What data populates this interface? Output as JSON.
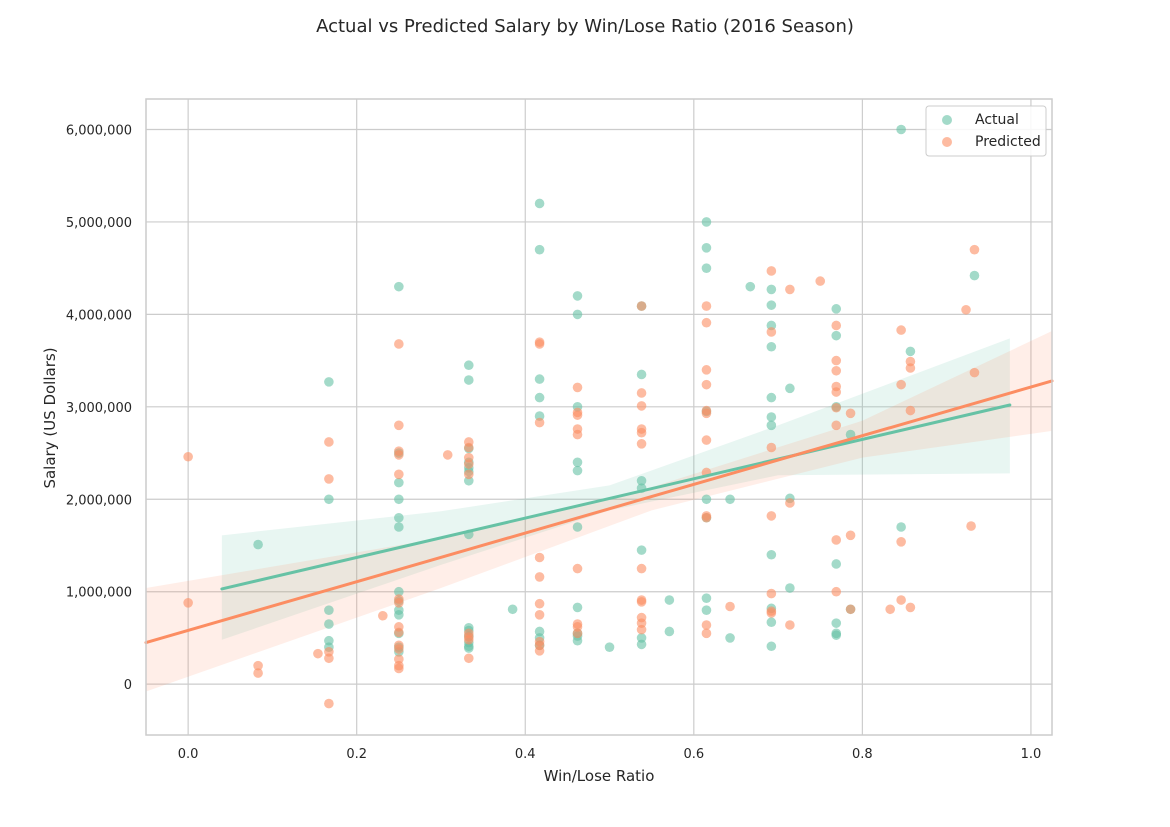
{
  "chart_data": {
    "type": "scatter",
    "title": "Actual vs Predicted Salary by Win/Lose Ratio (2016 Season)",
    "xlabel": "Win/Lose Ratio",
    "ylabel": "Salary (US Dollars)",
    "xlim": [
      -0.05,
      1.025
    ],
    "ylim": [
      -550000,
      6330000
    ],
    "xticks": [
      0.0,
      0.2,
      0.4,
      0.6,
      0.8,
      1.0
    ],
    "xtick_labels": [
      "0.0",
      "0.2",
      "0.4",
      "0.6",
      "0.8",
      "1.0"
    ],
    "yticks": [
      0,
      1000000,
      2000000,
      3000000,
      4000000,
      5000000,
      6000000
    ],
    "ytick_labels": [
      "0",
      "1,000,000",
      "2,000,000",
      "3,000,000",
      "4,000,000",
      "5,000,000",
      "6,000,000"
    ],
    "grid": true,
    "legend_position": "top-right",
    "series": [
      {
        "name": "Actual",
        "color": "#66c2a5",
        "points": [
          [
            0.083,
            1510000
          ],
          [
            0.167,
            3270000
          ],
          [
            0.167,
            2000000
          ],
          [
            0.167,
            800000
          ],
          [
            0.167,
            650000
          ],
          [
            0.167,
            470000
          ],
          [
            0.167,
            400000
          ],
          [
            0.25,
            4300000
          ],
          [
            0.25,
            2500000
          ],
          [
            0.25,
            2180000
          ],
          [
            0.25,
            2000000
          ],
          [
            0.25,
            1800000
          ],
          [
            0.25,
            1700000
          ],
          [
            0.25,
            1000000
          ],
          [
            0.25,
            900000
          ],
          [
            0.25,
            800000
          ],
          [
            0.25,
            750000
          ],
          [
            0.25,
            550000
          ],
          [
            0.25,
            400000
          ],
          [
            0.25,
            350000
          ],
          [
            0.333,
            3450000
          ],
          [
            0.333,
            3290000
          ],
          [
            0.333,
            2550000
          ],
          [
            0.333,
            2400000
          ],
          [
            0.333,
            2340000
          ],
          [
            0.333,
            2300000
          ],
          [
            0.333,
            2200000
          ],
          [
            0.333,
            1620000
          ],
          [
            0.333,
            610000
          ],
          [
            0.333,
            580000
          ],
          [
            0.333,
            520000
          ],
          [
            0.333,
            450000
          ],
          [
            0.333,
            410000
          ],
          [
            0.333,
            390000
          ],
          [
            0.385,
            810000
          ],
          [
            0.417,
            5200000
          ],
          [
            0.417,
            4700000
          ],
          [
            0.417,
            3300000
          ],
          [
            0.417,
            3100000
          ],
          [
            0.417,
            2900000
          ],
          [
            0.417,
            570000
          ],
          [
            0.417,
            500000
          ],
          [
            0.417,
            420000
          ],
          [
            0.462,
            4200000
          ],
          [
            0.462,
            4000000
          ],
          [
            0.462,
            3000000
          ],
          [
            0.462,
            2400000
          ],
          [
            0.462,
            2310000
          ],
          [
            0.462,
            1700000
          ],
          [
            0.462,
            830000
          ],
          [
            0.462,
            550000
          ],
          [
            0.462,
            520000
          ],
          [
            0.462,
            470000
          ],
          [
            0.5,
            400000
          ],
          [
            0.538,
            4090000
          ],
          [
            0.538,
            3350000
          ],
          [
            0.538,
            2200000
          ],
          [
            0.538,
            2120000
          ],
          [
            0.538,
            1450000
          ],
          [
            0.538,
            500000
          ],
          [
            0.538,
            430000
          ],
          [
            0.571,
            910000
          ],
          [
            0.571,
            570000
          ],
          [
            0.615,
            5000000
          ],
          [
            0.615,
            4720000
          ],
          [
            0.615,
            4500000
          ],
          [
            0.615,
            2950000
          ],
          [
            0.615,
            2000000
          ],
          [
            0.615,
            1800000
          ],
          [
            0.615,
            930000
          ],
          [
            0.615,
            800000
          ],
          [
            0.643,
            2000000
          ],
          [
            0.643,
            500000
          ],
          [
            0.667,
            4300000
          ],
          [
            0.692,
            4270000
          ],
          [
            0.692,
            4100000
          ],
          [
            0.692,
            3880000
          ],
          [
            0.692,
            3650000
          ],
          [
            0.692,
            3100000
          ],
          [
            0.692,
            2890000
          ],
          [
            0.692,
            2800000
          ],
          [
            0.692,
            1400000
          ],
          [
            0.692,
            820000
          ],
          [
            0.692,
            670000
          ],
          [
            0.692,
            410000
          ],
          [
            0.714,
            3200000
          ],
          [
            0.714,
            2010000
          ],
          [
            0.714,
            1040000
          ],
          [
            0.769,
            4060000
          ],
          [
            0.769,
            3770000
          ],
          [
            0.769,
            3000000
          ],
          [
            0.769,
            1300000
          ],
          [
            0.769,
            660000
          ],
          [
            0.769,
            550000
          ],
          [
            0.769,
            530000
          ],
          [
            0.786,
            2700000
          ],
          [
            0.786,
            810000
          ],
          [
            0.846,
            6000000
          ],
          [
            0.846,
            1700000
          ],
          [
            0.857,
            3600000
          ],
          [
            0.933,
            4420000
          ]
        ]
      },
      {
        "name": "Predicted",
        "color": "#fc8d62",
        "points": [
          [
            0.0,
            2460000
          ],
          [
            0.0,
            880000
          ],
          [
            0.083,
            200000
          ],
          [
            0.083,
            120000
          ],
          [
            0.154,
            330000
          ],
          [
            0.167,
            2620000
          ],
          [
            0.167,
            2220000
          ],
          [
            0.167,
            350000
          ],
          [
            0.167,
            280000
          ],
          [
            0.167,
            -210000
          ],
          [
            0.231,
            740000
          ],
          [
            0.25,
            3680000
          ],
          [
            0.25,
            2800000
          ],
          [
            0.25,
            2520000
          ],
          [
            0.25,
            2480000
          ],
          [
            0.25,
            2270000
          ],
          [
            0.25,
            920000
          ],
          [
            0.25,
            880000
          ],
          [
            0.25,
            620000
          ],
          [
            0.25,
            560000
          ],
          [
            0.25,
            420000
          ],
          [
            0.25,
            380000
          ],
          [
            0.25,
            270000
          ],
          [
            0.25,
            200000
          ],
          [
            0.25,
            170000
          ],
          [
            0.308,
            2480000
          ],
          [
            0.333,
            2620000
          ],
          [
            0.333,
            2560000
          ],
          [
            0.333,
            2450000
          ],
          [
            0.333,
            2380000
          ],
          [
            0.333,
            2270000
          ],
          [
            0.333,
            550000
          ],
          [
            0.333,
            510000
          ],
          [
            0.333,
            480000
          ],
          [
            0.333,
            280000
          ],
          [
            0.417,
            3700000
          ],
          [
            0.417,
            3680000
          ],
          [
            0.417,
            2830000
          ],
          [
            0.417,
            1370000
          ],
          [
            0.417,
            1160000
          ],
          [
            0.417,
            870000
          ],
          [
            0.417,
            750000
          ],
          [
            0.417,
            460000
          ],
          [
            0.417,
            420000
          ],
          [
            0.417,
            360000
          ],
          [
            0.462,
            3210000
          ],
          [
            0.462,
            2940000
          ],
          [
            0.462,
            2910000
          ],
          [
            0.462,
            2760000
          ],
          [
            0.462,
            2700000
          ],
          [
            0.462,
            1250000
          ],
          [
            0.462,
            650000
          ],
          [
            0.462,
            620000
          ],
          [
            0.462,
            550000
          ],
          [
            0.538,
            4090000
          ],
          [
            0.538,
            3150000
          ],
          [
            0.538,
            3010000
          ],
          [
            0.538,
            2760000
          ],
          [
            0.538,
            2720000
          ],
          [
            0.538,
            2600000
          ],
          [
            0.538,
            1250000
          ],
          [
            0.538,
            910000
          ],
          [
            0.538,
            890000
          ],
          [
            0.538,
            720000
          ],
          [
            0.538,
            660000
          ],
          [
            0.538,
            590000
          ],
          [
            0.615,
            4090000
          ],
          [
            0.615,
            3910000
          ],
          [
            0.615,
            3400000
          ],
          [
            0.615,
            3240000
          ],
          [
            0.615,
            2960000
          ],
          [
            0.615,
            2930000
          ],
          [
            0.615,
            2640000
          ],
          [
            0.615,
            2290000
          ],
          [
            0.615,
            1820000
          ],
          [
            0.615,
            1800000
          ],
          [
            0.615,
            640000
          ],
          [
            0.615,
            550000
          ],
          [
            0.643,
            840000
          ],
          [
            0.692,
            4470000
          ],
          [
            0.692,
            3810000
          ],
          [
            0.692,
            2560000
          ],
          [
            0.692,
            1820000
          ],
          [
            0.692,
            980000
          ],
          [
            0.692,
            790000
          ],
          [
            0.692,
            770000
          ],
          [
            0.714,
            4270000
          ],
          [
            0.714,
            1960000
          ],
          [
            0.714,
            640000
          ],
          [
            0.75,
            4360000
          ],
          [
            0.769,
            3880000
          ],
          [
            0.769,
            3500000
          ],
          [
            0.769,
            3390000
          ],
          [
            0.769,
            3220000
          ],
          [
            0.769,
            3160000
          ],
          [
            0.769,
            2990000
          ],
          [
            0.769,
            2800000
          ],
          [
            0.769,
            1560000
          ],
          [
            0.769,
            1000000
          ],
          [
            0.786,
            2930000
          ],
          [
            0.786,
            1610000
          ],
          [
            0.786,
            810000
          ],
          [
            0.833,
            810000
          ],
          [
            0.846,
            3830000
          ],
          [
            0.846,
            3240000
          ],
          [
            0.846,
            1540000
          ],
          [
            0.846,
            910000
          ],
          [
            0.857,
            3490000
          ],
          [
            0.857,
            3420000
          ],
          [
            0.857,
            2960000
          ],
          [
            0.857,
            830000
          ],
          [
            0.923,
            4050000
          ],
          [
            0.929,
            1710000
          ],
          [
            0.933,
            4700000
          ],
          [
            0.933,
            3370000
          ]
        ]
      }
    ],
    "regression": [
      {
        "name": "Actual",
        "color": "#66c2a5",
        "x_range": [
          0.04,
          0.975
        ],
        "line": [
          [
            0.04,
            1030000
          ],
          [
            0.975,
            3020000
          ]
        ],
        "ci_upper": [
          [
            0.04,
            1610000
          ],
          [
            0.3,
            1870000
          ],
          [
            0.5,
            2150000
          ],
          [
            0.7,
            2800000
          ],
          [
            0.975,
            3740000
          ]
        ],
        "ci_lower": [
          [
            0.04,
            480000
          ],
          [
            0.3,
            1290000
          ],
          [
            0.5,
            1880000
          ],
          [
            0.7,
            2260000
          ],
          [
            0.975,
            2280000
          ]
        ]
      },
      {
        "name": "Predicted",
        "color": "#fc8d62",
        "x_range": [
          -0.05,
          1.025
        ],
        "line": [
          [
            -0.05,
            450000
          ],
          [
            1.025,
            3280000
          ]
        ],
        "ci_upper": [
          [
            -0.05,
            1040000
          ],
          [
            0.3,
            1580000
          ],
          [
            0.55,
            2130000
          ],
          [
            0.8,
            2850000
          ],
          [
            1.025,
            3820000
          ]
        ],
        "ci_lower": [
          [
            -0.05,
            -80000
          ],
          [
            0.3,
            1040000
          ],
          [
            0.55,
            1880000
          ],
          [
            0.8,
            2450000
          ],
          [
            1.025,
            2740000
          ]
        ]
      }
    ]
  }
}
